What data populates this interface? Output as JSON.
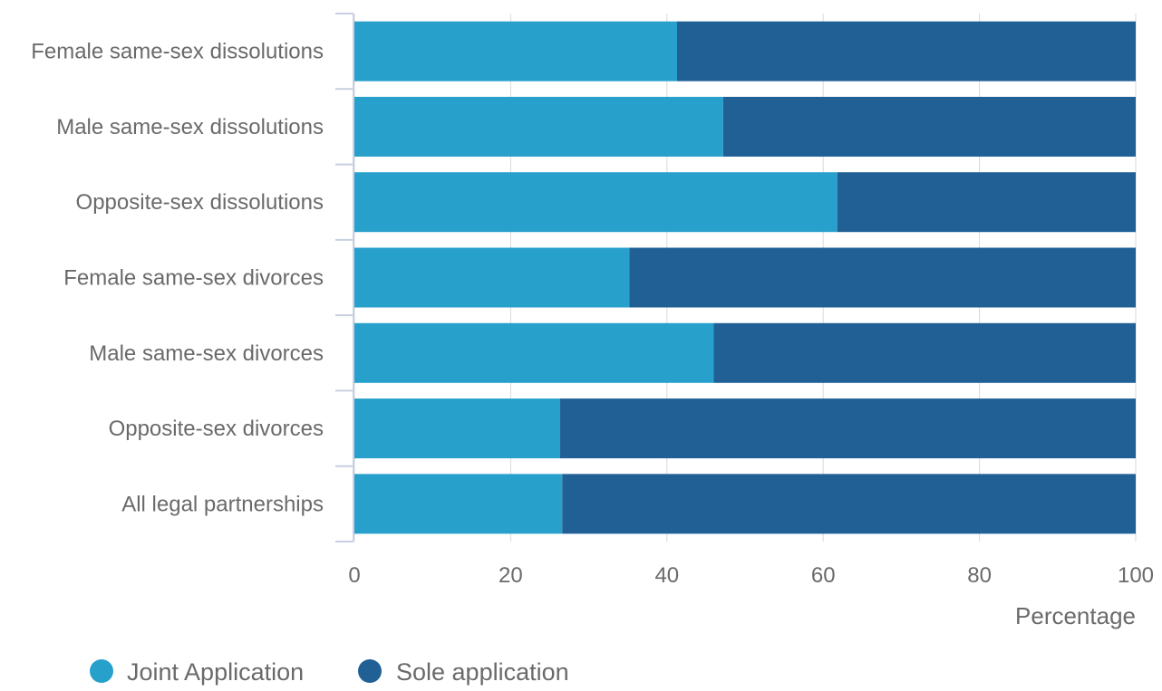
{
  "chart_data": {
    "type": "bar",
    "orientation": "horizontal",
    "stacked": true,
    "categories": [
      "Female same-sex dissolutions",
      "Male same-sex dissolutions",
      "Opposite-sex dissolutions",
      "Female same-sex divorces",
      "Male same-sex divorces",
      "Opposite-sex divorces",
      "All legal partnerships"
    ],
    "series": [
      {
        "name": "Joint Application",
        "color": "#27a0cc",
        "values": [
          41.3,
          47.2,
          61.8,
          35.2,
          46.0,
          26.3,
          26.6
        ]
      },
      {
        "name": "Sole application",
        "color": "#206095",
        "values": [
          58.7,
          52.8,
          38.2,
          64.8,
          54.0,
          73.7,
          73.4
        ]
      }
    ],
    "xlabel": "Percentage",
    "ylabel": "",
    "xlim": [
      0,
      100
    ],
    "x_ticks": [
      "0",
      "20",
      "40",
      "60",
      "80",
      "100"
    ],
    "grid": true,
    "legend_position": "bottom-left",
    "colors": {
      "gridline": "#d9d9d9",
      "axis_line": "#c8cfe0",
      "text": "#6a6a6a"
    }
  }
}
